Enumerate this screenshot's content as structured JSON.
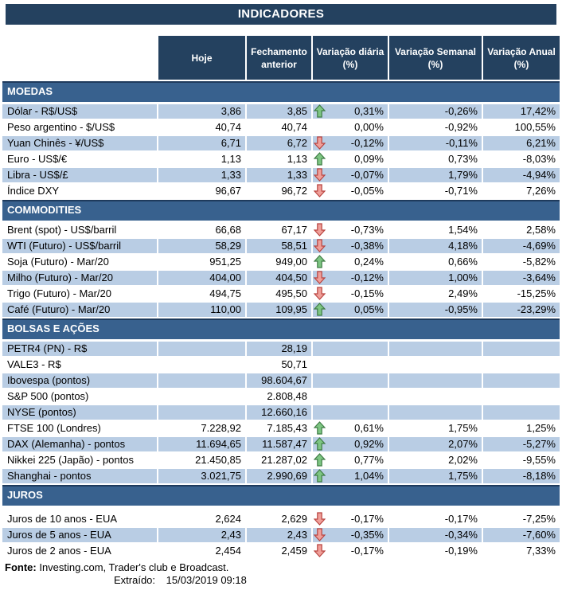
{
  "title": "INDICADORES",
  "table": {
    "columns": [
      "Hoje",
      "Fechamento anterior",
      "Variação diária (%)",
      "Variação Semanal (%)",
      "Variação Anual (%)"
    ],
    "sections": [
      {
        "name": "MOEDAS",
        "first_row_shaded": true,
        "rows": [
          {
            "label": "Dólar - R$/US$",
            "hoje": "3,86",
            "fechamento": "3,85",
            "arrow": "up",
            "diaria": "0,31%",
            "semanal": "-0,26%",
            "anual": "17,42%"
          },
          {
            "label": "Peso argentino - $/US$",
            "hoje": "40,74",
            "fechamento": "40,74",
            "arrow": null,
            "diaria": "0,00%",
            "semanal": "-0,92%",
            "anual": "100,55%"
          },
          {
            "label": "Yuan Chinês - ¥/US$",
            "hoje": "6,71",
            "fechamento": "6,72",
            "arrow": "down",
            "diaria": "-0,12%",
            "semanal": "-0,11%",
            "anual": "6,21%"
          },
          {
            "label": "Euro - US$/€",
            "hoje": "1,13",
            "fechamento": "1,13",
            "arrow": "up",
            "diaria": "0,09%",
            "semanal": "0,73%",
            "anual": "-8,03%"
          },
          {
            "label": "Libra - US$/£",
            "hoje": "1,33",
            "fechamento": "1,33",
            "arrow": "down",
            "diaria": "-0,07%",
            "semanal": "1,79%",
            "anual": "-4,94%"
          },
          {
            "label": "Índice DXY",
            "hoje": "96,67",
            "fechamento": "96,72",
            "arrow": "down",
            "diaria": "-0,05%",
            "semanal": "-0,71%",
            "anual": "7,26%"
          }
        ]
      },
      {
        "name": "COMMODITIES",
        "first_row_shaded": false,
        "rows": [
          {
            "label": "Brent (spot) - US$/barril",
            "hoje": "66,68",
            "fechamento": "67,17",
            "arrow": "down",
            "diaria": "-0,73%",
            "semanal": "1,54%",
            "anual": "2,58%"
          },
          {
            "label": "WTI (Futuro) - US$/barril",
            "hoje": "58,29",
            "fechamento": "58,51",
            "arrow": "down",
            "diaria": "-0,38%",
            "semanal": "4,18%",
            "anual": "-4,69%"
          },
          {
            "label": "Soja (Futuro) - Mar/20",
            "hoje": "951,25",
            "fechamento": "949,00",
            "arrow": "up",
            "diaria": "0,24%",
            "semanal": "0,66%",
            "anual": "-5,82%"
          },
          {
            "label": "Milho (Futuro) - Mar/20",
            "hoje": "404,00",
            "fechamento": "404,50",
            "arrow": "down",
            "diaria": "-0,12%",
            "semanal": "1,00%",
            "anual": "-3,64%"
          },
          {
            "label": "Trigo (Futuro) - Mar/20",
            "hoje": "494,75",
            "fechamento": "495,50",
            "arrow": "down",
            "diaria": "-0,15%",
            "semanal": "2,49%",
            "anual": "-15,25%"
          },
          {
            "label": "Café (Futuro) - Mar/20",
            "hoje": "110,00",
            "fechamento": "109,95",
            "arrow": "up",
            "diaria": "0,05%",
            "semanal": "-0,95%",
            "anual": "-23,29%"
          }
        ]
      },
      {
        "name": "BOLSAS E AÇÕES",
        "first_row_shaded": true,
        "rows": [
          {
            "label": "PETR4 (PN) - R$",
            "hoje": "",
            "fechamento": "28,19",
            "arrow": null,
            "diaria": "",
            "semanal": "",
            "anual": ""
          },
          {
            "label": "VALE3 - R$",
            "hoje": "",
            "fechamento": "50,71",
            "arrow": null,
            "diaria": "",
            "semanal": "",
            "anual": ""
          },
          {
            "label": "Ibovespa (pontos)",
            "hoje": "",
            "fechamento": "98.604,67",
            "arrow": null,
            "diaria": "",
            "semanal": "",
            "anual": ""
          },
          {
            "label": "S&P 500 (pontos)",
            "hoje": "",
            "fechamento": "2.808,48",
            "arrow": null,
            "diaria": "",
            "semanal": "",
            "anual": ""
          },
          {
            "label": "NYSE (pontos)",
            "hoje": "",
            "fechamento": "12.660,16",
            "arrow": null,
            "diaria": "",
            "semanal": "",
            "anual": ""
          },
          {
            "label": "FTSE 100 (Londres)",
            "hoje": "7.228,92",
            "fechamento": "7.185,43",
            "arrow": "up",
            "diaria": "0,61%",
            "semanal": "1,75%",
            "anual": "1,25%"
          },
          {
            "label": "DAX (Alemanha) - pontos",
            "hoje": "11.694,65",
            "fechamento": "11.587,47",
            "arrow": "up",
            "diaria": "0,92%",
            "semanal": "2,07%",
            "anual": "-5,27%"
          },
          {
            "label": "Nikkei 225 (Japão) - pontos",
            "hoje": "21.450,85",
            "fechamento": "21.287,02",
            "arrow": "up",
            "diaria": "0,77%",
            "semanal": "2,02%",
            "anual": "-9,55%"
          },
          {
            "label": "Shanghai - pontos",
            "hoje": "3.021,75",
            "fechamento": "2.990,69",
            "arrow": "up",
            "diaria": "1,04%",
            "semanal": "1,75%",
            "anual": "-8,18%"
          }
        ]
      },
      {
        "name": "JUROS",
        "first_row_shaded": false,
        "rows": [
          {
            "label": "Juros de 10 anos - EUA",
            "hoje": "2,624",
            "fechamento": "2,629",
            "arrow": "down",
            "diaria": "-0,17%",
            "semanal": "-0,17%",
            "anual": "-7,25%"
          },
          {
            "label": "Juros de 5 anos - EUA",
            "hoje": "2,43",
            "fechamento": "2,43",
            "arrow": "down",
            "diaria": "-0,35%",
            "semanal": "-0,34%",
            "anual": "-7,60%"
          },
          {
            "label": "Juros de 2 anos - EUA",
            "hoje": "2,454",
            "fechamento": "2,459",
            "arrow": "down",
            "diaria": "-0,17%",
            "semanal": "-0,19%",
            "anual": "7,33%"
          }
        ]
      }
    ]
  },
  "footer": {
    "fonte_label": "Fonte:",
    "fonte_text": "Investing.com, Trader's club e Broadcast.",
    "extraido_label": "Extraído:",
    "extraido_value": "15/03/2019 09:18"
  },
  "colors": {
    "header_navy": "#24415F",
    "section_band_blue": "#38618E",
    "section_band_border": "#1E3A5C",
    "shaded_row_blue": "#B9CDE4",
    "arrow_up_fill": "#7EC683",
    "arrow_up_stroke": "#3E7B44",
    "arrow_down_fill": "#F0A09A",
    "arrow_down_stroke": "#B8423E"
  }
}
